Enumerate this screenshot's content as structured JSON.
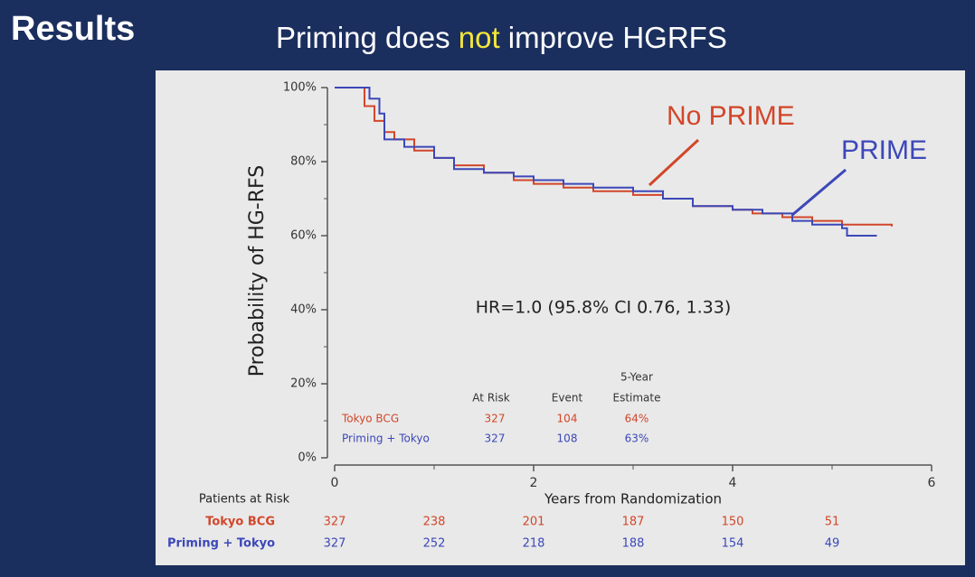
{
  "header": {
    "title": "Results",
    "subtitle": [
      "Priming does ",
      "not",
      " improve HGRFS"
    ]
  },
  "chart_data": {
    "type": "line",
    "step": true,
    "y_label": "Probability of HG-RFS",
    "x_label": "Years from Randomization",
    "annotation": "HR=1.0 (95.8% CI 0.76, 1.33)",
    "xlim": [
      0,
      6
    ],
    "xticks": [
      0,
      2,
      4,
      6
    ],
    "xminorticks": [
      1,
      3,
      5
    ],
    "ylim": [
      0,
      100
    ],
    "yticks": [
      {
        "value": 0,
        "label": "0%"
      },
      {
        "value": 20,
        "label": "20%"
      },
      {
        "value": 40,
        "label": "40%"
      },
      {
        "value": 60,
        "label": "60%"
      },
      {
        "value": 80,
        "label": "80%"
      },
      {
        "value": 100,
        "label": "100%"
      }
    ],
    "yminorticks": [
      10,
      30,
      50,
      70,
      90
    ],
    "series": [
      {
        "name": "No PRIME",
        "color": "#d2462a",
        "x": [
          0,
          0.25,
          0.3,
          0.4,
          0.5,
          0.6,
          0.8,
          1.0,
          1.2,
          1.5,
          1.8,
          2.0,
          2.3,
          2.6,
          3.0,
          3.3,
          3.6,
          4.0,
          4.2,
          4.5,
          4.8,
          5.1,
          5.6
        ],
        "values": [
          100,
          100,
          95,
          91,
          88,
          86,
          83,
          81,
          79,
          77,
          75,
          74,
          73,
          72,
          71,
          70,
          68,
          67,
          66,
          65,
          64,
          63,
          62.5
        ]
      },
      {
        "name": "PRIME",
        "color": "#3c48b8",
        "x": [
          0,
          0.25,
          0.35,
          0.45,
          0.5,
          0.7,
          1.0,
          1.2,
          1.5,
          1.8,
          2.0,
          2.3,
          2.6,
          3.0,
          3.3,
          3.6,
          4.0,
          4.3,
          4.6,
          4.8,
          5.1,
          5.15,
          5.45
        ],
        "values": [
          100,
          100,
          97,
          93,
          86,
          84,
          81,
          78,
          77,
          76,
          75,
          74,
          73,
          72,
          70,
          68,
          67,
          66,
          64,
          63,
          62,
          60,
          60
        ]
      }
    ],
    "summary_table": {
      "headers": [
        "At Risk",
        "Event",
        "5-Year",
        "Estimate"
      ],
      "rows": [
        {
          "name": "Tokyo BCG",
          "cells": [
            327,
            104,
            "64%"
          ]
        },
        {
          "name": "Priming + Tokyo",
          "cells": [
            327,
            108,
            "63%"
          ]
        }
      ]
    },
    "risk_table": {
      "title": "Patients at Risk",
      "rows": [
        {
          "name": "Tokyo BCG",
          "values": [
            327,
            238,
            201,
            187,
            150,
            51
          ]
        },
        {
          "name": "Priming + Tokyo",
          "values": [
            327,
            252,
            218,
            188,
            154,
            49
          ]
        }
      ]
    }
  }
}
